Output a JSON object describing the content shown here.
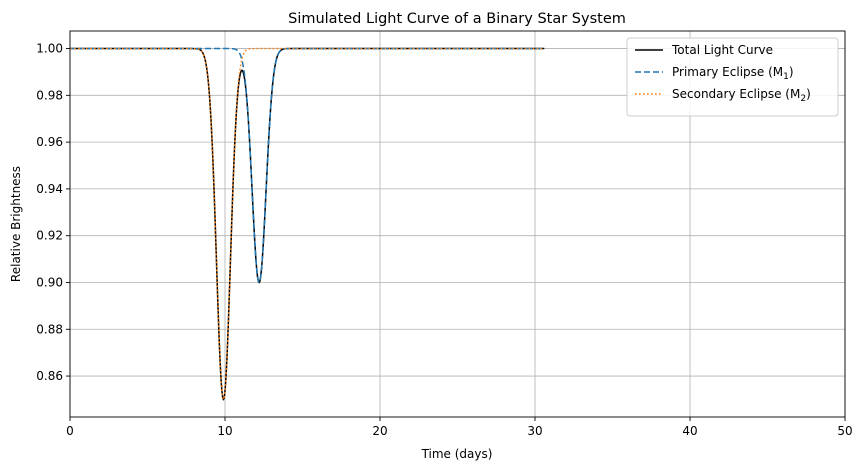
{
  "chart_data": {
    "type": "line",
    "title": "Simulated Light Curve of a Binary Star System",
    "xlabel": "Time (days)",
    "ylabel": "Relative Brightness",
    "xlim": [
      0,
      50
    ],
    "ylim": [
      0.8425,
      1.0075
    ],
    "xticks": [
      0,
      10,
      20,
      30,
      40,
      50
    ],
    "yticks": [
      0.86,
      0.88,
      0.9,
      0.92,
      0.94,
      0.96,
      0.98,
      1.0
    ],
    "grid": true,
    "legend_position": "top-right",
    "x_range": [
      0,
      30.6
    ],
    "series": [
      {
        "name": "Total Light Curve",
        "legend_main": "Total Light Curve",
        "legend_sub": "",
        "legend_tail": "",
        "color": "#000000",
        "style": "solid",
        "components": [
          {
            "center": 9.9,
            "depth": 0.15,
            "width": 0.45
          },
          {
            "center": 12.2,
            "depth": 0.1,
            "width": 0.45
          }
        ]
      },
      {
        "name": "Primary Eclipse (M1)",
        "legend_main": "Primary Eclipse (M",
        "legend_sub": "1",
        "legend_tail": ")",
        "color": "#1f77b4",
        "style": "dashed",
        "components": [
          {
            "center": 12.2,
            "depth": 0.1,
            "width": 0.45
          }
        ]
      },
      {
        "name": "Secondary Eclipse (M2)",
        "legend_main": "Secondary Eclipse (M",
        "legend_sub": "2",
        "legend_tail": ")",
        "color": "#ff7f0e",
        "style": "dotted",
        "components": [
          {
            "center": 9.9,
            "depth": 0.15,
            "width": 0.45
          }
        ]
      }
    ]
  }
}
